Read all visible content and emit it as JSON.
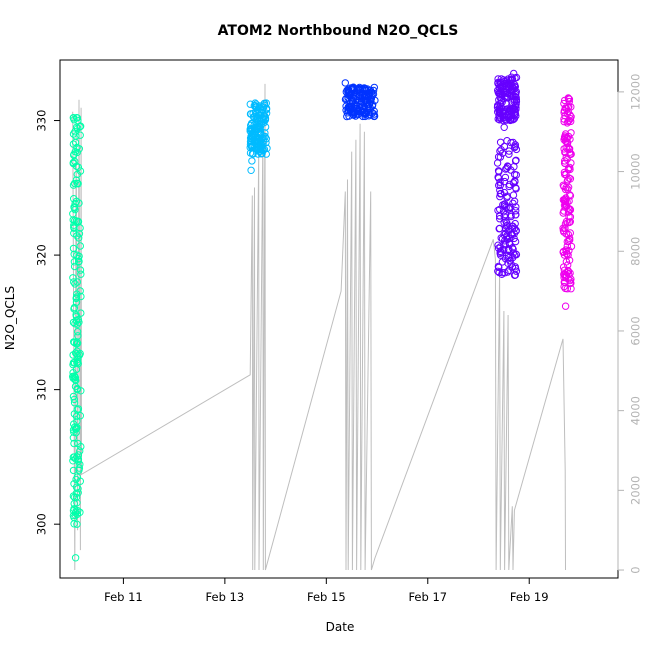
{
  "chart_data": {
    "type": "scatter",
    "title": "ATOM2 Northbound N2O_QCLS",
    "xlabel": "Date",
    "ylabel": "N2O_QCLS",
    "x_type": "date",
    "xlim": [
      "2016-02-09T18:00",
      "2016-02-20T18:00"
    ],
    "ylim": [
      296,
      334.5
    ],
    "y2lim": [
      -200,
      12800
    ],
    "x_ticks": [
      {
        "value": "2016-02-11",
        "label": "Feb 11"
      },
      {
        "value": "2016-02-13",
        "label": "Feb 13"
      },
      {
        "value": "2016-02-15",
        "label": "Feb 15"
      },
      {
        "value": "2016-02-17",
        "label": "Feb 17"
      },
      {
        "value": "2016-02-19",
        "label": "Feb 19"
      }
    ],
    "y_ticks": [
      300,
      310,
      320,
      330
    ],
    "y2_ticks": [
      0,
      2000,
      4000,
      6000,
      8000,
      10000,
      12000
    ],
    "grid": false,
    "legend": "none",
    "series": [
      {
        "color": "#00ffaa",
        "time_range": [
          "2016-02-10T00:00",
          "2016-02-10T04:00"
        ],
        "points": [
          [
            0.1,
            330.2
          ],
          [
            0.1,
            329
          ],
          [
            0.15,
            327.5
          ],
          [
            0.1,
            325.2
          ],
          [
            0.2,
            323.5
          ],
          [
            0.15,
            322
          ],
          [
            0.1,
            320.5
          ],
          [
            0.2,
            319.5
          ],
          [
            0.12,
            318
          ],
          [
            0.15,
            316
          ],
          [
            0.1,
            315
          ],
          [
            0.2,
            313.5
          ],
          [
            0.1,
            312
          ],
          [
            0.15,
            311
          ],
          [
            0.1,
            309.5
          ],
          [
            0.2,
            308.2
          ],
          [
            0.1,
            307
          ],
          [
            0.15,
            306
          ],
          [
            0.2,
            305
          ],
          [
            0.1,
            304
          ],
          [
            0.15,
            303
          ],
          [
            0.2,
            302
          ],
          [
            0.1,
            301
          ],
          [
            0.15,
            300.5
          ],
          [
            0.35,
            297.5
          ],
          [
            0.6,
            330
          ],
          [
            0.5,
            328
          ],
          [
            0.55,
            326
          ],
          [
            0.45,
            324
          ],
          [
            0.6,
            322.5
          ],
          [
            0.5,
            320
          ],
          [
            0.55,
            318
          ],
          [
            0.45,
            316.5
          ],
          [
            0.6,
            314
          ],
          [
            0.5,
            312
          ],
          [
            0.55,
            310
          ],
          [
            0.45,
            308
          ],
          [
            0.6,
            306
          ],
          [
            0.5,
            305
          ],
          [
            0.55,
            303.5
          ],
          [
            0.45,
            302
          ],
          [
            0.6,
            301
          ],
          [
            0.5,
            300
          ]
        ],
        "bands": [
          [
            300,
            330.5
          ]
        ]
      },
      {
        "color": "#00bbff",
        "time_range": [
          "2016-02-13T12:00",
          "2016-02-13T20:00"
        ],
        "points": [
          [
            0,
            328
          ],
          [
            0.1,
            327
          ],
          [
            0.05,
            326.3
          ],
          [
            0.2,
            329
          ],
          [
            0.35,
            329.8
          ],
          [
            0.5,
            330
          ],
          [
            0.65,
            330.6
          ],
          [
            0.8,
            331
          ],
          [
            0.95,
            331.3
          ],
          [
            0.3,
            328.5
          ],
          [
            0.6,
            329.5
          ],
          [
            0.9,
            330.2
          ]
        ],
        "bands": [
          [
            327.5,
            331.3
          ]
        ]
      },
      {
        "color": "#0033ff",
        "time_range": [
          "2016-02-15T09:00",
          "2016-02-15T23:00"
        ],
        "points": [
          [
            0,
            332.8
          ],
          [
            0.05,
            330.3
          ],
          [
            0.15,
            331.5
          ],
          [
            0.3,
            330.5
          ],
          [
            0.45,
            331.8
          ],
          [
            0.6,
            330.8
          ],
          [
            0.75,
            331.2
          ],
          [
            0.9,
            332
          ],
          [
            1,
            331.5
          ]
        ],
        "bands": [
          [
            330.3,
            332.5
          ]
        ]
      },
      {
        "color": "#6600ff",
        "time_range": [
          "2016-02-18T09:00",
          "2016-02-18T18:00"
        ],
        "points": [
          [
            0,
            331
          ],
          [
            0.1,
            332
          ],
          [
            0.2,
            331.5
          ],
          [
            0.3,
            330
          ],
          [
            0.35,
            329.5
          ],
          [
            0.4,
            330.5
          ],
          [
            0.55,
            332
          ],
          [
            0.7,
            333
          ],
          [
            0.85,
            333.5
          ],
          [
            1,
            333.2
          ],
          [
            0.9,
            328
          ],
          [
            0.95,
            327
          ],
          [
            0.9,
            326
          ],
          [
            0.95,
            325
          ],
          [
            0.9,
            324
          ],
          [
            0.95,
            323
          ],
          [
            0.9,
            322
          ],
          [
            0.95,
            321
          ],
          [
            0.9,
            320
          ],
          [
            0.95,
            319
          ],
          [
            0.9,
            318.5
          ],
          [
            0.5,
            328.5
          ],
          [
            0.6,
            327.5
          ]
        ],
        "bands": [
          [
            330,
            333.3
          ],
          [
            318.5,
            328.5
          ]
        ]
      },
      {
        "color": "#ee00ee",
        "time_range": [
          "2016-02-19T16:00",
          "2016-02-19T20:00"
        ],
        "points": [
          [
            0.2,
            331.5
          ],
          [
            0.5,
            330.5
          ],
          [
            0.3,
            329
          ],
          [
            0.6,
            328
          ],
          [
            0.2,
            327
          ],
          [
            0.5,
            325.5
          ],
          [
            0.3,
            324
          ],
          [
            0.6,
            323.5
          ],
          [
            0.2,
            322
          ],
          [
            0.5,
            321
          ],
          [
            0.4,
            319.5
          ],
          [
            0.2,
            318
          ],
          [
            0.5,
            317.5
          ],
          [
            0.3,
            316.2
          ],
          [
            0.6,
            320
          ],
          [
            0.2,
            326
          ]
        ],
        "bands": [
          [
            317.5,
            331.8
          ]
        ]
      }
    ],
    "altitude_series": {
      "axis": "right",
      "color": "#bebebe",
      "points": [
        [
          "2016-02-10T00:00",
          11500
        ],
        [
          "2016-02-10T01:00",
          0
        ],
        [
          "2016-02-10T01:40",
          11000
        ],
        [
          "2016-02-10T02:20",
          1000
        ],
        [
          "2016-02-10T03:00",
          11800
        ],
        [
          "2016-02-10T03:40",
          500
        ],
        [
          "2016-02-10T04:00",
          11600
        ],
        [
          "2016-02-10T04:10",
          2400
        ],
        [
          "2016-02-13T12:00",
          4900
        ],
        [
          "2016-02-13T13:00",
          9400
        ],
        [
          "2016-02-13T13:10",
          0
        ],
        [
          "2016-02-13T14:00",
          9600
        ],
        [
          "2016-02-13T14:10",
          0
        ],
        [
          "2016-02-13T16:00",
          10500
        ],
        [
          "2016-02-13T16:10",
          0
        ],
        [
          "2016-02-13T18:00",
          11000
        ],
        [
          "2016-02-13T18:10",
          0
        ],
        [
          "2016-02-13T19:00",
          12200
        ],
        [
          "2016-02-13T19:10",
          0
        ],
        [
          "2016-02-15T07:00",
          7000
        ],
        [
          "2016-02-15T09:00",
          9500
        ],
        [
          "2016-02-15T09:20",
          0
        ],
        [
          "2016-02-15T10:00",
          9800
        ],
        [
          "2016-02-15T10:20",
          0
        ],
        [
          "2016-02-15T12:00",
          10500
        ],
        [
          "2016-02-15T12:20",
          0
        ],
        [
          "2016-02-15T14:00",
          10800
        ],
        [
          "2016-02-15T14:20",
          0
        ],
        [
          "2016-02-15T16:00",
          11200
        ],
        [
          "2016-02-15T16:20",
          0
        ],
        [
          "2016-02-15T18:00",
          11000
        ],
        [
          "2016-02-15T18:20",
          0
        ],
        [
          "2016-02-15T21:00",
          9500
        ],
        [
          "2016-02-15T21:20",
          0
        ],
        [
          "2016-02-15T23:00",
          300
        ],
        [
          "2016-02-18T07:00",
          8300
        ],
        [
          "2016-02-18T08:00",
          7800
        ],
        [
          "2016-02-18T08:20",
          0
        ],
        [
          "2016-02-18T10:00",
          7500
        ],
        [
          "2016-02-18T10:20",
          0
        ],
        [
          "2016-02-18T12:00",
          6500
        ],
        [
          "2016-02-18T12:20",
          0
        ],
        [
          "2016-02-18T14:00",
          6400
        ],
        [
          "2016-02-18T14:20",
          0
        ],
        [
          "2016-02-18T16:00",
          1600
        ],
        [
          "2016-02-18T16:20",
          0
        ],
        [
          "2016-02-18T17:00",
          1500
        ],
        [
          "2016-02-19T16:00",
          5800
        ],
        [
          "2016-02-19T17:00",
          2500
        ],
        [
          "2016-02-19T17:10",
          0
        ]
      ]
    }
  }
}
